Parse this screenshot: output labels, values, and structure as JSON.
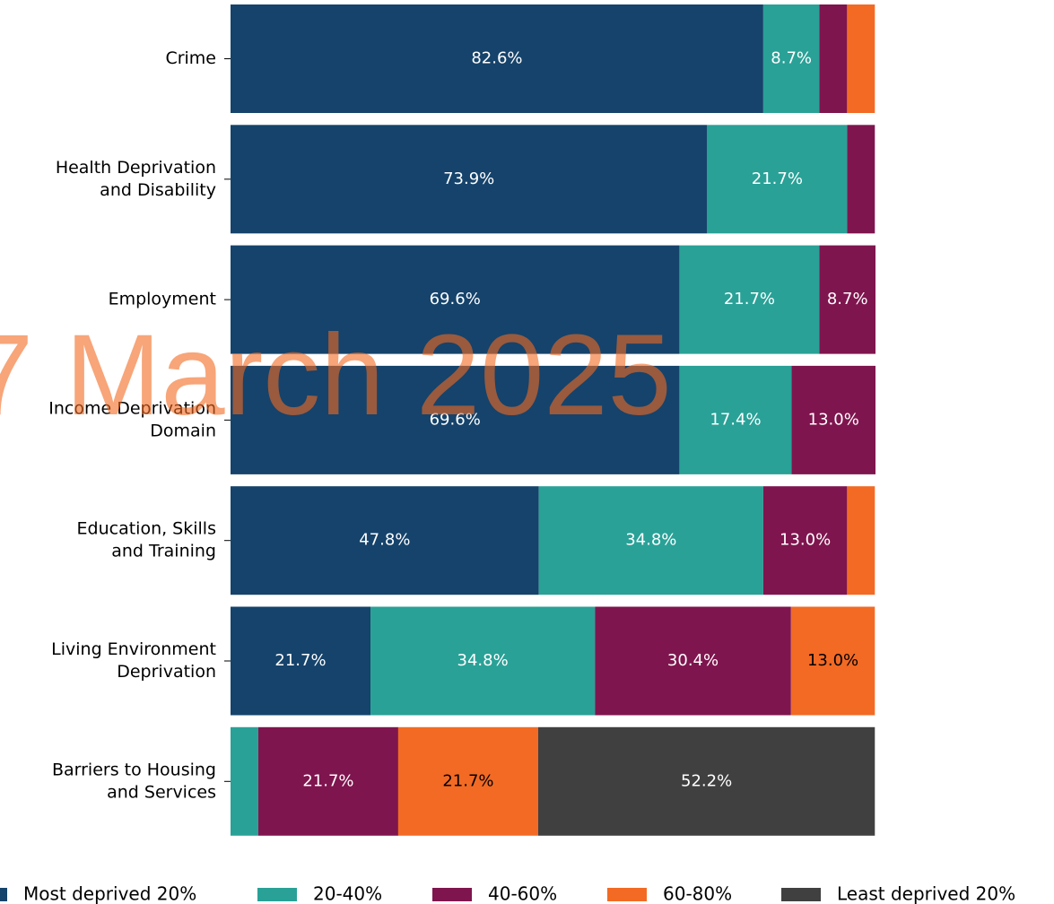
{
  "chart_data": {
    "type": "stacked_barh",
    "categories": [
      [
        "Crime"
      ],
      [
        "Health Deprivation",
        "and Disability"
      ],
      [
        "Employment"
      ],
      [
        "Income Deprivation",
        "Domain"
      ],
      [
        "Education, Skills",
        "and Training"
      ],
      [
        "Living Environment",
        "Deprivation"
      ],
      [
        "Barriers to Housing",
        "and Services"
      ]
    ],
    "xlim": [
      0,
      100
    ],
    "series": [
      {
        "name": "Most deprived 20%",
        "color": "#15436b",
        "values": [
          82.6,
          73.9,
          69.6,
          69.6,
          47.8,
          21.7,
          0
        ],
        "value_labels": [
          "82.6%",
          "73.9%",
          "69.6%",
          "69.6%",
          "47.8%",
          "21.7%",
          null
        ]
      },
      {
        "name": "20-40%",
        "color": "#29a197",
        "values": [
          8.7,
          21.7,
          21.7,
          17.4,
          34.8,
          34.8,
          4.3
        ],
        "value_labels": [
          "8.7%",
          "21.7%",
          "21.7%",
          "17.4%",
          "34.8%",
          "34.8%",
          null
        ]
      },
      {
        "name": "40-60%",
        "color": "#7f154e",
        "values": [
          4.3,
          4.3,
          8.7,
          13.0,
          13.0,
          30.4,
          21.7
        ],
        "value_labels": [
          null,
          null,
          "8.7%",
          "13.0%",
          "13.0%",
          "30.4%",
          "21.7%"
        ]
      },
      {
        "name": "60-80%",
        "color": "#f26a24",
        "values": [
          4.3,
          0,
          0,
          0,
          4.3,
          13.0,
          21.7
        ],
        "value_labels": [
          null,
          null,
          null,
          null,
          null,
          "13.0%",
          "21.7%"
        ]
      },
      {
        "name": "Least deprived 20%",
        "color": "#404040",
        "values": [
          0,
          0,
          0,
          0,
          0,
          0,
          52.2
        ],
        "value_labels": [
          null,
          null,
          null,
          null,
          null,
          null,
          "52.2%"
        ]
      }
    ],
    "legend": "bottom",
    "watermark": "7 March 2025"
  }
}
